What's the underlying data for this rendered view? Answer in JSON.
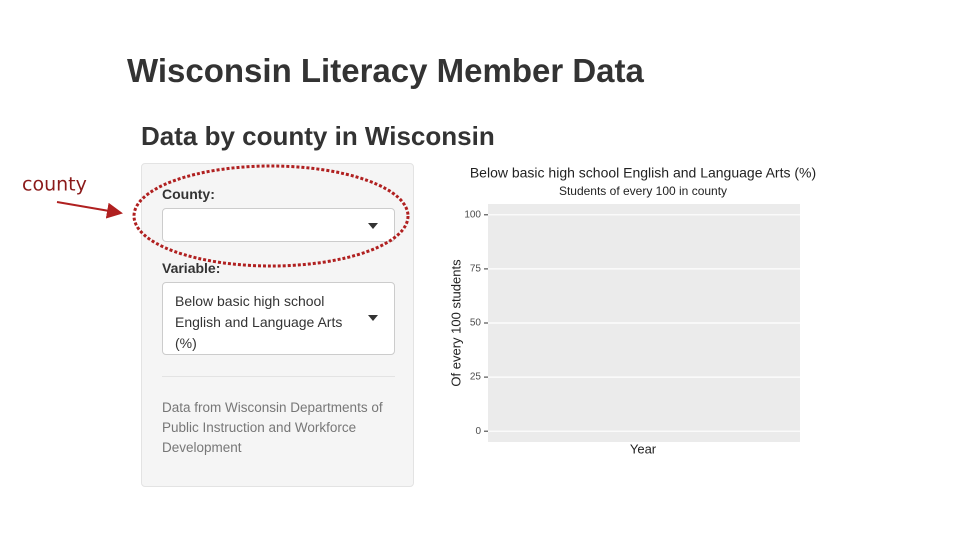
{
  "annotation": {
    "label": "county"
  },
  "header": {
    "title": "Wisconsin Literacy Member Data"
  },
  "panel": {
    "title": "Data by county in Wisconsin",
    "county_label": "County:",
    "variable_label": "Variable:",
    "variable_value": "Below basic high school English and Language Arts (%)",
    "source_note": "Data from Wisconsin Departments of Public Instruction and Workforce Development"
  },
  "chart_data": {
    "type": "line",
    "title": "Below basic high school English and Language Arts (%)",
    "subtitle": "Students of every 100 in  county",
    "xlabel": "Year",
    "ylabel": "Of every 100 students",
    "series": [],
    "ylim": [
      -5,
      105
    ],
    "yticks": [
      0,
      25,
      50,
      75,
      100
    ],
    "grid": true,
    "background": "#ebebeb"
  }
}
